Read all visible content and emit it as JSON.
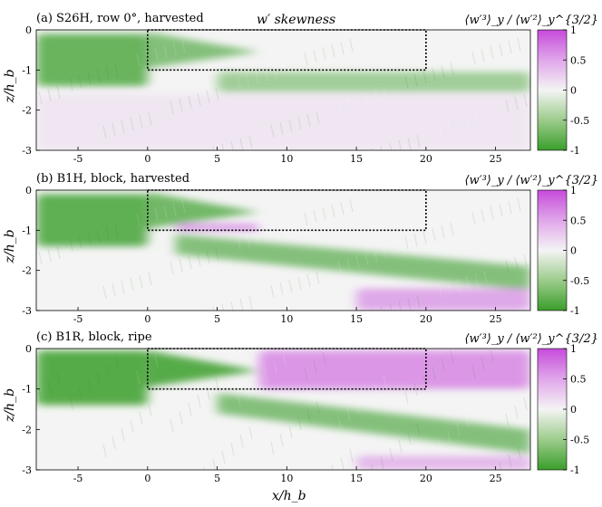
{
  "figure_title": "w′ skewness",
  "x_axis_label": "x/h_b",
  "y_axis_label": "z/h_b",
  "colorbar_label": "⟨w′³⟩_y / ⟨w′²⟩_y^{3/2}",
  "colors": {
    "negative": "#3a9e2a",
    "zero": "#f4f4f4",
    "positive": "#c64bdb"
  },
  "chart_data": [
    {
      "type": "heatmap",
      "title": "(a) S26H, row 0°, harvested",
      "xlabel": "x/h_b",
      "ylabel": "z/h_b",
      "xlim": [
        -8,
        27.5
      ],
      "ylim": [
        -3,
        0
      ],
      "xticks": [
        -5,
        0,
        5,
        10,
        15,
        20,
        25
      ],
      "yticks": [
        0,
        -1,
        -2,
        -3
      ],
      "clim": [
        -1,
        1
      ],
      "colorbar_ticks": [
        1,
        0.5,
        0,
        -0.5,
        -1
      ],
      "canopy_box": {
        "x": [
          0,
          20
        ],
        "z": [
          -1,
          0
        ]
      },
      "features": [
        {
          "region": "upstream band",
          "x": [
            -8,
            0
          ],
          "z": [
            -1.4,
            -0.1
          ],
          "skewness": -0.75
        },
        {
          "region": "shear-layer wedge",
          "x": [
            0,
            8
          ],
          "z": [
            -0.95,
            -0.05
          ],
          "skewness": -0.6
        },
        {
          "region": "lowered band",
          "x": [
            5,
            27.5
          ],
          "z": [
            -1.55,
            -1.05
          ],
          "skewness": -0.45
        },
        {
          "region": "lower flow",
          "x": [
            -8,
            27.5
          ],
          "z": [
            -3,
            -1.6
          ],
          "skewness": 0.08
        }
      ]
    },
    {
      "type": "heatmap",
      "title": "(b) B1H, block, harvested",
      "xlabel": "x/h_b",
      "ylabel": "z/h_b",
      "xlim": [
        -8,
        27.5
      ],
      "ylim": [
        -3,
        0
      ],
      "xticks": [
        -5,
        0,
        5,
        10,
        15,
        20,
        25
      ],
      "yticks": [
        0,
        -1,
        -2,
        -3
      ],
      "clim": [
        -1,
        1
      ],
      "colorbar_ticks": [
        1,
        0.5,
        0,
        -0.5,
        -1
      ],
      "canopy_box": {
        "x": [
          0,
          20
        ],
        "z": [
          -1,
          0
        ]
      },
      "features": [
        {
          "region": "upstream band",
          "x": [
            -8,
            0
          ],
          "z": [
            -1.4,
            -0.1
          ],
          "skewness": -0.8
        },
        {
          "region": "shear-layer wedge",
          "x": [
            0,
            8
          ],
          "z": [
            -0.95,
            -0.05
          ],
          "skewness": -0.7
        },
        {
          "region": "canopy-base strip",
          "x": [
            2,
            8
          ],
          "z": [
            -1,
            -0.85
          ],
          "skewness": 0.6
        },
        {
          "region": "descending band",
          "x": [
            2,
            27.5
          ],
          "z": [
            -2.5,
            -1.1
          ],
          "skewness": -0.6
        },
        {
          "region": "lower-right region",
          "x": [
            15,
            27.5
          ],
          "z": [
            -3,
            -2.45
          ],
          "skewness": 0.45
        }
      ]
    },
    {
      "type": "heatmap",
      "title": "(c) B1R, block, ripe",
      "xlabel": "x/h_b",
      "ylabel": "z/h_b",
      "xlim": [
        -8,
        27.5
      ],
      "ylim": [
        -3,
        0
      ],
      "xticks": [
        -5,
        0,
        5,
        10,
        15,
        20,
        25
      ],
      "yticks": [
        0,
        -1,
        -2,
        -3
      ],
      "clim": [
        -1,
        1
      ],
      "colorbar_ticks": [
        1,
        0.5,
        0,
        -0.5,
        -1
      ],
      "canopy_box": {
        "x": [
          0,
          20
        ],
        "z": [
          -1,
          0
        ]
      },
      "features": [
        {
          "region": "upstream band",
          "x": [
            -8,
            0
          ],
          "z": [
            -1.4,
            -0.05
          ],
          "skewness": -0.85
        },
        {
          "region": "shear-layer wedge",
          "x": [
            0,
            8
          ],
          "z": [
            -0.95,
            -0.05
          ],
          "skewness": -0.85
        },
        {
          "region": "in-canopy positive",
          "x": [
            8,
            27.5
          ],
          "z": [
            -1,
            -0.05
          ],
          "skewness": 0.55
        },
        {
          "region": "descending band",
          "x": [
            5,
            27.5
          ],
          "z": [
            -2.6,
            -1.1
          ],
          "skewness": -0.6
        },
        {
          "region": "lower positive",
          "x": [
            15,
            27.5
          ],
          "z": [
            -3,
            -2.65
          ],
          "skewness": 0.35
        }
      ]
    }
  ]
}
